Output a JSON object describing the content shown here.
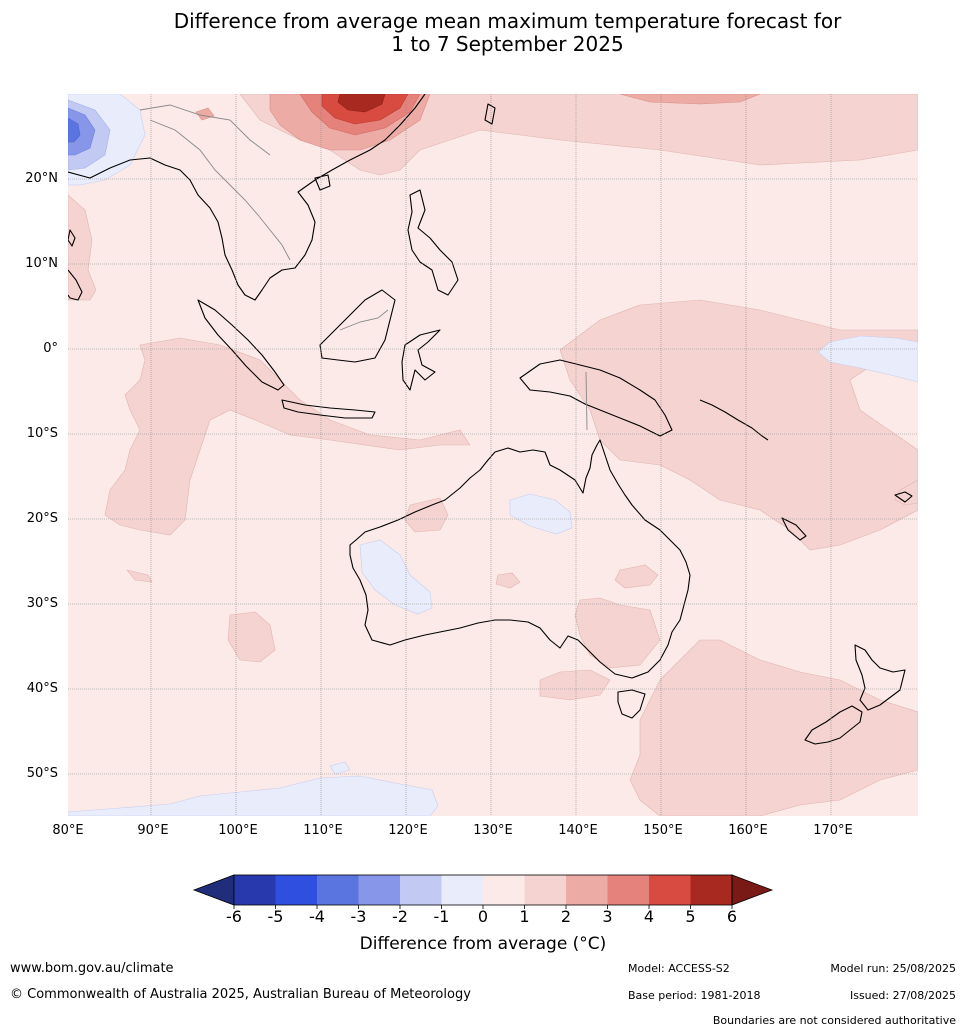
{
  "title": {
    "line1": "Difference from average mean maximum temperature forecast for",
    "line2": "1 to 7 September 2025"
  },
  "map": {
    "region": "Australasia and Maritime Continent",
    "lat_labels": [
      "20°N",
      "10°N",
      "0°",
      "10°S",
      "20°S",
      "30°S",
      "40°S",
      "50°S"
    ],
    "lon_labels": [
      "80°E",
      "90°E",
      "100°E",
      "110°E",
      "120°E",
      "130°E",
      "140°E",
      "150°E",
      "160°E",
      "170°E"
    ],
    "background_anomaly_class": "0 to 1",
    "features": [
      {
        "name": "warm-anomaly-south-china",
        "class": "4 to 6"
      },
      {
        "name": "cool-anomaly-bay-of-bengal-north",
        "class": "-4 to -1"
      },
      {
        "name": "cool-anomaly-western-australia",
        "class": "-1 to 0"
      },
      {
        "name": "cool-anomaly-central-australia",
        "class": "-1 to 0"
      },
      {
        "name": "cool-anomaly-equatorial-pacific",
        "class": "-1 to 0"
      },
      {
        "name": "cool-anomaly-southern-ocean",
        "class": "-1 to 0"
      }
    ]
  },
  "colorbar": {
    "ticks": [
      "-6",
      "-5",
      "-4",
      "-3",
      "-2",
      "-1",
      "0",
      "1",
      "2",
      "3",
      "4",
      "5",
      "6"
    ],
    "colors": [
      "#1f2d7a",
      "#2739ad",
      "#2f4fe0",
      "#5a74e0",
      "#8796e8",
      "#c2c9f2",
      "#e9ecfb",
      "#fbeae8",
      "#f5d3d0",
      "#ecaba5",
      "#e5827b",
      "#d84b40",
      "#a8291f",
      "#7a1a17"
    ],
    "title": "Difference from average (°C)"
  },
  "footer": {
    "url": "www.bom.gov.au/climate",
    "copyright": "© Commonwealth of Australia 2025, Australian Bureau of Meteorology",
    "model": "Model: ACCESS-S2",
    "base_period": "Base period: 1981-2018",
    "model_run": "Model run: 25/08/2025",
    "issued": "Issued: 27/08/2025",
    "disclaimer": "Boundaries are not considered authoritative"
  }
}
